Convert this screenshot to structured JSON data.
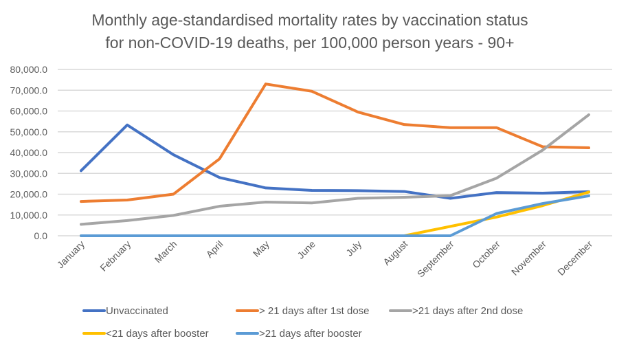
{
  "chart_data": {
    "type": "line",
    "title": [
      "Monthly age-standardised mortality rates by vaccination status",
      "for non-COVID-19 deaths, per 100,000 person years - 90+"
    ],
    "xlabel": "",
    "ylabel": "",
    "ylim": [
      0,
      80000
    ],
    "yticks": [
      "0.0",
      "10,000.0",
      "20,000.0",
      "30,000.0",
      "40,000.0",
      "50,000.0",
      "60,000.0",
      "70,000.0",
      "80,000.0"
    ],
    "categories": [
      "January",
      "February",
      "March",
      "April",
      "May",
      "June",
      "July",
      "August",
      "September",
      "October",
      "November",
      "December"
    ],
    "grid": true,
    "legend_position": "bottom",
    "series": [
      {
        "name": "Unvaccinated",
        "color": "#4472C4",
        "values": [
          31300,
          53300,
          39000,
          28000,
          23000,
          21800,
          21700,
          21300,
          18000,
          20800,
          20500,
          21200
        ]
      },
      {
        "name": "> 21 days after 1st dose",
        "color": "#ED7D31",
        "values": [
          16500,
          17200,
          20000,
          37000,
          73000,
          69500,
          59500,
          53500,
          52000,
          52000,
          42800,
          42300
        ]
      },
      {
        "name": ">21 days after 2nd dose",
        "color": "#A5A5A5",
        "values": [
          5500,
          7300,
          9800,
          14200,
          16200,
          15800,
          18000,
          18500,
          19300,
          27700,
          41200,
          58200
        ]
      },
      {
        "name": "<21 days after booster",
        "color": "#FFC000",
        "values": [
          0,
          0,
          0,
          0,
          0,
          0,
          0,
          0,
          4500,
          9000,
          14500,
          21000
        ]
      },
      {
        "name": ">21 days after booster",
        "color": "#5B9BD5",
        "values": [
          0,
          0,
          0,
          0,
          0,
          0,
          0,
          0,
          0,
          10700,
          15500,
          19200
        ]
      }
    ]
  }
}
